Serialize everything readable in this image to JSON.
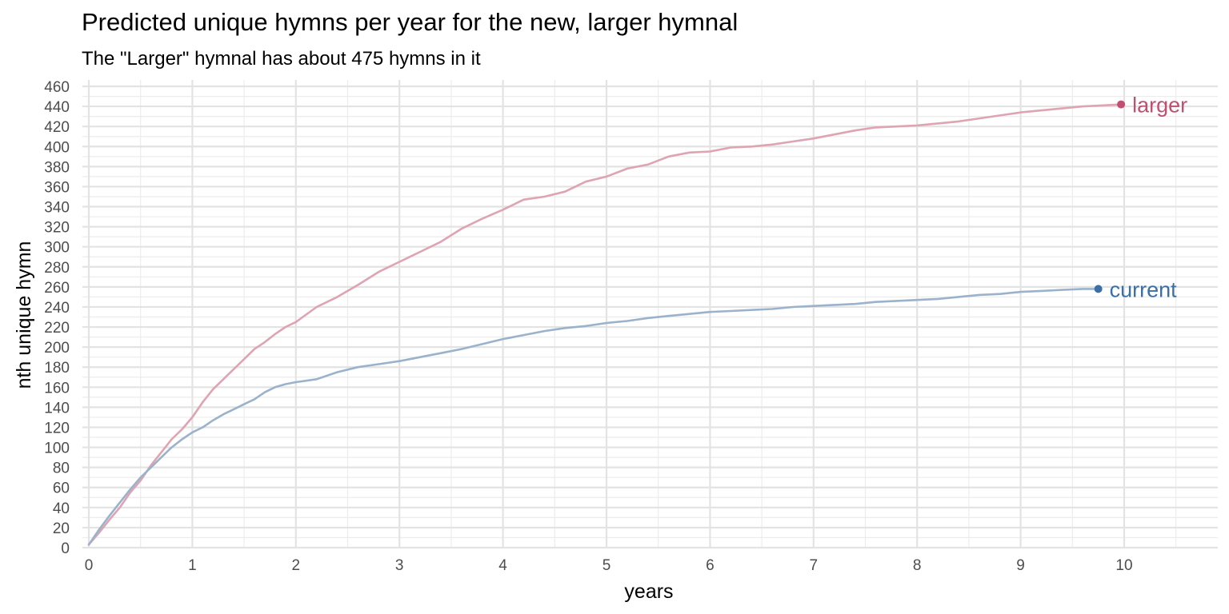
{
  "chart_data": {
    "type": "line",
    "title": "Predicted unique hymns per year for the new, larger hymnal",
    "subtitle": "The \"Larger\" hymnal has about 475 hymns in it",
    "xlabel": "years",
    "ylabel": "nth unique hymn",
    "xlim": [
      0,
      10.9
    ],
    "ylim": [
      0,
      460
    ],
    "x_ticks": [
      0,
      1,
      2,
      3,
      4,
      5,
      6,
      7,
      8,
      9,
      10
    ],
    "y_ticks": [
      0,
      20,
      40,
      60,
      80,
      100,
      120,
      140,
      160,
      180,
      200,
      220,
      240,
      260,
      280,
      300,
      320,
      340,
      360,
      380,
      400,
      420,
      440,
      460
    ],
    "grid": true,
    "legend": "direct labels at line ends",
    "series": [
      {
        "name": "larger",
        "color": "#c05070",
        "line_color": "#dea4b1",
        "x": [
          0,
          0.1,
          0.2,
          0.3,
          0.4,
          0.5,
          0.6,
          0.7,
          0.8,
          0.9,
          1.0,
          1.1,
          1.2,
          1.3,
          1.4,
          1.5,
          1.6,
          1.7,
          1.8,
          1.9,
          2.0,
          2.2,
          2.4,
          2.6,
          2.8,
          3.0,
          3.2,
          3.4,
          3.6,
          3.8,
          4.0,
          4.2,
          4.4,
          4.6,
          4.8,
          5.0,
          5.2,
          5.4,
          5.6,
          5.8,
          6.0,
          6.2,
          6.4,
          6.6,
          6.8,
          7.0,
          7.2,
          7.4,
          7.6,
          7.8,
          8.0,
          8.2,
          8.4,
          8.6,
          8.8,
          9.0,
          9.2,
          9.4,
          9.6,
          9.8,
          9.97
        ],
        "y": [
          3,
          15,
          28,
          40,
          55,
          67,
          82,
          95,
          108,
          118,
          130,
          145,
          158,
          168,
          178,
          188,
          198,
          205,
          213,
          220,
          225,
          240,
          250,
          262,
          275,
          285,
          295,
          305,
          318,
          328,
          337,
          347,
          350,
          355,
          365,
          370,
          378,
          382,
          390,
          394,
          395,
          399,
          400,
          402,
          405,
          408,
          412,
          416,
          419,
          420,
          421,
          423,
          425,
          428,
          431,
          434,
          436,
          438,
          440,
          441,
          442
        ]
      },
      {
        "name": "current",
        "color": "#3a6fa8",
        "line_color": "#9ab2cc",
        "x": [
          0,
          0.1,
          0.2,
          0.3,
          0.4,
          0.5,
          0.6,
          0.7,
          0.8,
          0.9,
          1.0,
          1.1,
          1.2,
          1.3,
          1.4,
          1.5,
          1.6,
          1.7,
          1.8,
          1.9,
          2.0,
          2.2,
          2.4,
          2.6,
          2.8,
          3.0,
          3.2,
          3.4,
          3.6,
          3.8,
          4.0,
          4.2,
          4.4,
          4.6,
          4.8,
          5.0,
          5.2,
          5.4,
          5.6,
          5.8,
          6.0,
          6.2,
          6.4,
          6.6,
          6.8,
          7.0,
          7.2,
          7.4,
          7.6,
          7.8,
          8.0,
          8.2,
          8.4,
          8.6,
          8.8,
          9.0,
          9.2,
          9.4,
          9.6,
          9.75
        ],
        "y": [
          3,
          18,
          32,
          45,
          58,
          70,
          80,
          90,
          100,
          108,
          115,
          120,
          127,
          133,
          138,
          143,
          148,
          155,
          160,
          163,
          165,
          168,
          175,
          180,
          183,
          186,
          190,
          194,
          198,
          203,
          208,
          212,
          216,
          219,
          221,
          224,
          226,
          229,
          231,
          233,
          235,
          236,
          237,
          238,
          240,
          241,
          242,
          243,
          245,
          246,
          247,
          248,
          250,
          252,
          253,
          255,
          256,
          257,
          258,
          258
        ]
      }
    ]
  }
}
